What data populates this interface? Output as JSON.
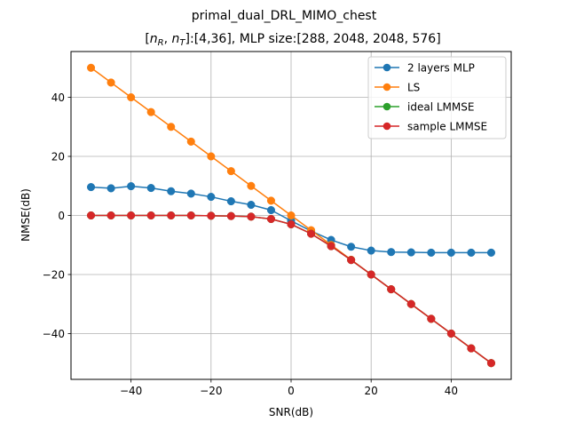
{
  "chart_data": {
    "type": "line",
    "suptitle": "primal_dual_DRL_MIMO_chest",
    "title_prefix": "[",
    "title_nR_base": "n",
    "title_nR_sub": "R",
    "title_sep": ", ",
    "title_nT_base": "n",
    "title_nT_sub": "T",
    "title_suffix": "]:[4,36], MLP size:[288, 2048, 2048, 576]",
    "xlabel": "SNR(dB)",
    "ylabel": "NMSE(dB)",
    "xlim": [
      -55,
      55
    ],
    "ylim": [
      -55.5,
      55.5
    ],
    "xticks": [
      -40,
      -20,
      0,
      20,
      40
    ],
    "yticks": [
      -40,
      -20,
      0,
      20,
      40
    ],
    "xtick_labels": [
      "−40",
      "−20",
      "0",
      "20",
      "40"
    ],
    "ytick_labels": [
      "−40",
      "−20",
      "0",
      "20",
      "40"
    ],
    "grid": true,
    "legend_position": "upper right",
    "x": [
      -50,
      -45,
      -40,
      -35,
      -30,
      -25,
      -20,
      -15,
      -10,
      -5,
      0,
      5,
      10,
      15,
      20,
      25,
      30,
      35,
      40,
      45,
      50
    ],
    "series": [
      {
        "name": "2 layers MLP",
        "color": "#1f77b4",
        "values": [
          9.6,
          9.2,
          9.9,
          9.3,
          8.2,
          7.4,
          6.3,
          4.8,
          3.6,
          1.8,
          -1.8,
          -5.3,
          -8.3,
          -10.6,
          -11.9,
          -12.4,
          -12.5,
          -12.6,
          -12.6,
          -12.6,
          -12.6
        ]
      },
      {
        "name": "LS",
        "color": "#ff7f0e",
        "values": [
          50,
          45,
          40,
          35,
          30,
          25,
          20,
          15,
          10,
          5,
          0,
          -5,
          -10,
          -15,
          -20,
          -25,
          -30,
          -35,
          -40,
          -45,
          -50
        ]
      },
      {
        "name": "ideal LMMSE",
        "color": "#2ca02c",
        "values": [
          0,
          0,
          0,
          0,
          0,
          0,
          -0.1,
          -0.2,
          -0.4,
          -1.2,
          -3.0,
          -6.2,
          -10.4,
          -15.1,
          -20.0,
          -25.0,
          -30.0,
          -35.0,
          -40.0,
          -45.0,
          -50.0
        ]
      },
      {
        "name": "sample LMMSE",
        "color": "#d62728",
        "values": [
          0,
          0,
          0,
          0,
          0,
          0,
          -0.1,
          -0.2,
          -0.4,
          -1.2,
          -3.0,
          -6.2,
          -10.4,
          -15.1,
          -20.0,
          -25.0,
          -30.0,
          -35.0,
          -40.0,
          -45.0,
          -50.0
        ]
      }
    ]
  }
}
